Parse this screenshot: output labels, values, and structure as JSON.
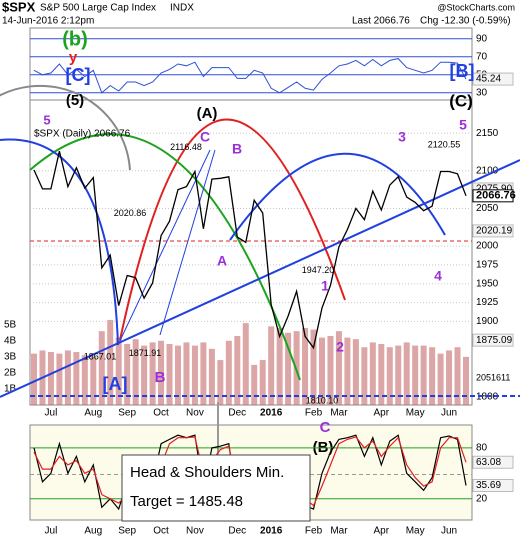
{
  "header": {
    "symbol": "$SPX",
    "name": "S&P 500 Large Cap Index",
    "exchange": "INDX",
    "date": "14-Jun-2016 2:12pm",
    "last": "Last 2066.76",
    "change": "Chg -12.30 (-0.59%)",
    "credit": "@StockCharts.com",
    "callout": [
      "Head & Shoulders Min.",
      "Target = 1485.48"
    ]
  },
  "chart_data": [
    {
      "type": "line",
      "color": "#2f4fd8",
      "values": [
        55,
        50,
        52,
        62,
        50,
        56,
        48,
        55,
        30,
        38,
        32,
        42,
        42,
        38,
        42,
        52,
        56,
        62,
        60,
        64,
        48,
        58,
        58,
        58,
        46,
        46,
        55,
        52,
        35,
        30,
        36,
        42,
        35,
        33,
        45,
        52,
        60,
        62,
        66,
        60,
        67,
        60,
        66,
        68,
        58,
        55,
        52,
        55,
        64,
        64,
        63,
        45.24
      ],
      "ylim": [
        22,
        102
      ],
      "yticks": [
        30,
        50,
        70,
        90
      ],
      "markers": [
        {
          "value": 45.24,
          "label": "45.24"
        }
      ]
    },
    {
      "type": "line",
      "categories": [
        null,
        null,
        "Jul",
        null,
        null,
        null,
        null,
        "Aug",
        null,
        null,
        null,
        "Sep",
        null,
        null,
        null,
        "Oct",
        null,
        null,
        null,
        "Nov",
        null,
        null,
        null,
        null,
        "Dec",
        null,
        null,
        null,
        "2016",
        null,
        null,
        null,
        null,
        "Feb",
        null,
        null,
        "Mar",
        null,
        null,
        null,
        null,
        "Apr",
        null,
        null,
        null,
        "May",
        null,
        null,
        null,
        "Jun",
        null,
        null
      ],
      "series": [
        {
          "name": "$SPX (Daily) 2066.76",
          "color": "#000000",
          "values": [
            2101,
            2076,
            2076,
            2126,
            2079,
            2104,
            2077,
            2091,
            1971,
            1988,
            1921,
            1961,
            1958,
            1931,
            1951,
            2014,
            2033,
            2075,
            2079,
            2099,
            2023,
            2089,
            2090,
            2092,
            2012,
            2005,
            2061,
            2044,
            1922,
            1880,
            1907,
            1940,
            1880,
            1865,
            1918,
            1948,
            1999,
            2022,
            2050,
            2035,
            2073,
            2048,
            2081,
            2092,
            2065,
            2058,
            2047,
            2053,
            2099,
            2099,
            2096,
            2066.76
          ]
        },
        {
          "type": "bar",
          "axis": "y2",
          "color": "#c46a6a",
          "values": [
            3.2,
            3.4,
            3.3,
            3.2,
            3.4,
            3.3,
            3.1,
            3.0,
            4.6,
            5.3,
            4.2,
            3.8,
            4.1,
            3.7,
            3.9,
            4.0,
            3.8,
            3.7,
            3.9,
            3.7,
            3.9,
            3.5,
            2.8,
            4.0,
            4.3,
            5.1,
            2.5,
            2.8,
            4.9,
            4.8,
            4.5,
            4.6,
            4.8,
            4.7,
            4.2,
            4.3,
            4.6,
            4.2,
            4.1,
            3.6,
            3.9,
            3.8,
            3.6,
            3.7,
            3.9,
            3.7,
            3.7,
            3.6,
            3.2,
            3.4,
            3.6,
            3.0
          ]
        }
      ],
      "ylim": [
        1789,
        2194
      ],
      "yticks": [
        1800,
        1900,
        1925,
        1950,
        1975,
        2000,
        2050,
        2100,
        2150
      ],
      "grid": true,
      "y2lim": [
        0,
        19
      ],
      "y2ticks": [
        {
          "value": 1,
          "label": "1B"
        },
        {
          "value": 2,
          "label": "2B"
        },
        {
          "value": 3,
          "label": "3B"
        },
        {
          "value": 4,
          "label": "4B"
        },
        {
          "value": 5,
          "label": "5B"
        }
      ],
      "volume_label": 2051611,
      "levels": [
        {
          "value": 2075.9,
          "label": "2075.90"
        },
        {
          "value": 2066.76,
          "label": "2066.76"
        },
        {
          "value": 2020.19,
          "label": "2020.19"
        },
        {
          "value": 1875.09,
          "label": "1875.09"
        }
      ],
      "price_labels": [
        {
          "value": 2116.48,
          "label": "2116.48"
        },
        {
          "value": 2020.86,
          "label": "2020.86"
        },
        {
          "value": 1867.01,
          "label": "1867.01"
        },
        {
          "value": 1871.91,
          "label": "1871.91"
        },
        {
          "value": 1947.2,
          "label": "1947.20"
        },
        {
          "value": 1810.1,
          "label": "1810.10"
        },
        {
          "value": 2120.55,
          "label": "2120.55"
        }
      ],
      "wave_labels": [
        "(b)",
        "y",
        "[C]",
        "(5)",
        "5",
        "(A)",
        "C",
        "B",
        "A",
        "B",
        "1",
        "2",
        "3",
        "4",
        "5",
        "(C)",
        "[B]",
        "[A]",
        "(B)",
        "C"
      ]
    },
    {
      "type": "line",
      "series": [
        {
          "color": "#000000",
          "values": [
            80,
            40,
            50,
            85,
            50,
            70,
            40,
            60,
            10,
            20,
            8,
            40,
            45,
            25,
            40,
            85,
            90,
            95,
            92,
            95,
            30,
            80,
            82,
            85,
            15,
            15,
            70,
            55,
            5,
            5,
            25,
            50,
            12,
            8,
            50,
            75,
            90,
            92,
            95,
            70,
            92,
            60,
            88,
            95,
            50,
            40,
            30,
            45,
            92,
            94,
            90,
            35.69
          ]
        },
        {
          "color": "#e02020",
          "values": [
            75,
            55,
            55,
            70,
            60,
            65,
            50,
            55,
            25,
            20,
            15,
            25,
            40,
            35,
            35,
            60,
            85,
            92,
            92,
            93,
            50,
            65,
            78,
            82,
            35,
            20,
            55,
            55,
            20,
            8,
            15,
            35,
            20,
            12,
            35,
            60,
            85,
            90,
            93,
            80,
            88,
            70,
            82,
            92,
            60,
            45,
            35,
            40,
            80,
            92,
            92,
            63.08
          ]
        }
      ],
      "ylim": [
        -5,
        107
      ],
      "yticks": [
        20,
        80
      ],
      "markers": [
        {
          "value": 63.08,
          "label": "63.08"
        },
        {
          "value": 35.69,
          "label": "35.69"
        }
      ]
    }
  ]
}
